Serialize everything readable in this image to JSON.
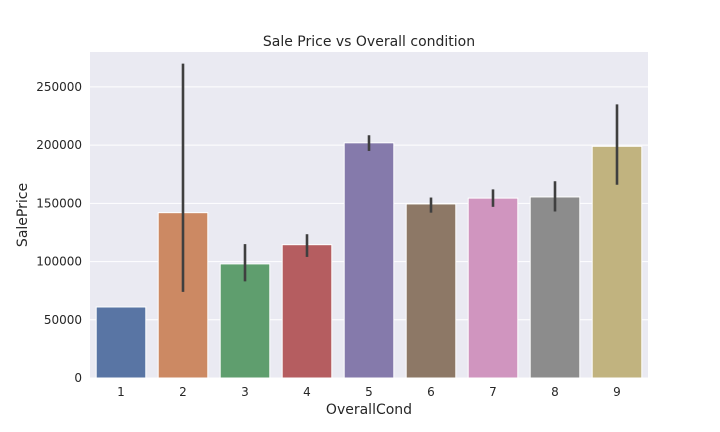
{
  "chart_data": {
    "type": "bar",
    "title": "Sale Price vs Overall condition",
    "xlabel": "OverallCond",
    "ylabel": "SalePrice",
    "categories": [
      "1",
      "2",
      "3",
      "4",
      "5",
      "6",
      "7",
      "8",
      "9"
    ],
    "values": [
      61000,
      142000,
      98000,
      114500,
      202000,
      149500,
      154500,
      155500,
      199000
    ],
    "error_low": [
      61000,
      74000,
      83000,
      104000,
      195000,
      142000,
      147000,
      143000,
      166000
    ],
    "error_high": [
      61000,
      270000,
      115000,
      123500,
      208500,
      155000,
      162000,
      169000,
      235000
    ],
    "ylim": [
      0,
      280000
    ],
    "yticks": [
      0,
      50000,
      100000,
      150000,
      200000,
      250000
    ],
    "colors": [
      "#5975a4",
      "#cc8963",
      "#5f9e6e",
      "#b55d60",
      "#857aab",
      "#8d7866",
      "#d095bf",
      "#8c8c8c",
      "#c1b37f"
    ],
    "background": "#eaeaf2",
    "grid": true
  }
}
